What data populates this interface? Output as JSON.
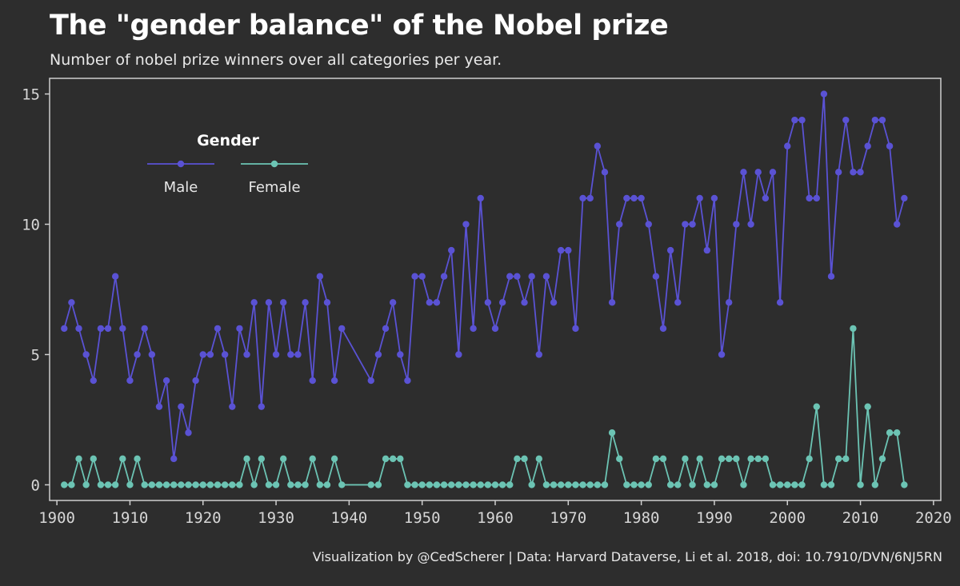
{
  "title": "The \"gender balance\" of the Nobel prize",
  "subtitle": "Number of nobel prize winners over all categories per year.",
  "caption": "Visualization by @CedScherer  |  Data: Harvard Dataverse, Li et al. 2018, doi: 10.7910/DVN/6NJ5RN",
  "chart_data": {
    "type": "line",
    "title": "The \"gender balance\" of the Nobel prize",
    "subtitle": "Number of nobel prize winners over all categories per year.",
    "xlabel": "",
    "ylabel": "",
    "xlim": [
      1899,
      2021
    ],
    "ylim": [
      -0.6,
      15.6
    ],
    "xticks": [
      1900,
      1910,
      1920,
      1930,
      1940,
      1950,
      1960,
      1970,
      1980,
      1990,
      2000,
      2010,
      2020
    ],
    "yticks": [
      0,
      5,
      10,
      15
    ],
    "grid": false,
    "legend": {
      "title": "Gender",
      "position": "top-left",
      "orientation": "horizontal"
    },
    "colors": {
      "background": "#2d2d2d",
      "male": "#5a52d4",
      "female": "#6cc4b4",
      "frame": "#cfcfcf",
      "text": "#e8e8e8"
    },
    "x": [
      1901,
      1902,
      1903,
      1904,
      1905,
      1906,
      1907,
      1908,
      1909,
      1910,
      1911,
      1912,
      1913,
      1914,
      1915,
      1916,
      1917,
      1918,
      1919,
      1920,
      1921,
      1922,
      1923,
      1924,
      1925,
      1926,
      1927,
      1928,
      1929,
      1930,
      1931,
      1932,
      1933,
      1934,
      1935,
      1936,
      1937,
      1938,
      1939,
      1943,
      1944,
      1945,
      1946,
      1947,
      1948,
      1949,
      1950,
      1951,
      1952,
      1953,
      1954,
      1955,
      1956,
      1957,
      1958,
      1959,
      1960,
      1961,
      1962,
      1963,
      1964,
      1965,
      1966,
      1967,
      1968,
      1969,
      1970,
      1971,
      1972,
      1973,
      1974,
      1975,
      1976,
      1977,
      1978,
      1979,
      1980,
      1981,
      1982,
      1983,
      1984,
      1985,
      1986,
      1987,
      1988,
      1989,
      1990,
      1991,
      1992,
      1993,
      1994,
      1995,
      1996,
      1997,
      1998,
      1999,
      2000,
      2001,
      2002,
      2003,
      2004,
      2005,
      2006,
      2007,
      2008,
      2009,
      2010,
      2011,
      2012,
      2013,
      2014,
      2015,
      2016
    ],
    "series": [
      {
        "name": "Male",
        "color": "#5a52d4",
        "values": [
          6,
          7,
          6,
          5,
          4,
          6,
          6,
          8,
          6,
          4,
          5,
          6,
          5,
          3,
          4,
          1,
          3,
          2,
          4,
          5,
          5,
          6,
          5,
          3,
          6,
          5,
          7,
          3,
          7,
          5,
          7,
          5,
          5,
          7,
          4,
          8,
          7,
          4,
          6,
          4,
          5,
          6,
          7,
          5,
          4,
          8,
          8,
          7,
          7,
          8,
          9,
          5,
          10,
          6,
          11,
          7,
          6,
          7,
          8,
          8,
          7,
          8,
          5,
          8,
          7,
          9,
          9,
          6,
          11,
          11,
          13,
          12,
          7,
          10,
          11,
          11,
          11,
          10,
          8,
          6,
          9,
          7,
          10,
          10,
          11,
          9,
          11,
          5,
          7,
          10,
          12,
          10,
          12,
          11,
          12,
          7,
          13,
          14,
          14,
          11,
          11,
          15,
          8,
          12,
          14,
          12,
          12,
          13,
          14,
          14,
          13,
          10,
          11
        ]
      },
      {
        "name": "Female",
        "color": "#6cc4b4",
        "values": [
          0,
          0,
          1,
          0,
          1,
          0,
          0,
          0,
          1,
          0,
          1,
          0,
          0,
          0,
          0,
          0,
          0,
          0,
          0,
          0,
          0,
          0,
          0,
          0,
          0,
          1,
          0,
          1,
          0,
          0,
          1,
          0,
          0,
          0,
          1,
          0,
          0,
          1,
          0,
          0,
          0,
          1,
          1,
          1,
          0,
          0,
          0,
          0,
          0,
          0,
          0,
          0,
          0,
          0,
          0,
          0,
          0,
          0,
          0,
          1,
          1,
          0,
          1,
          0,
          0,
          0,
          0,
          0,
          0,
          0,
          0,
          0,
          2,
          1,
          0,
          0,
          0,
          0,
          1,
          1,
          0,
          0,
          1,
          0,
          1,
          0,
          0,
          1,
          1,
          1,
          0,
          1,
          1,
          1,
          0,
          0,
          0,
          0,
          0,
          1,
          3,
          0,
          0,
          1,
          1,
          6,
          0,
          3,
          0,
          1,
          2,
          2,
          0
        ]
      }
    ]
  }
}
